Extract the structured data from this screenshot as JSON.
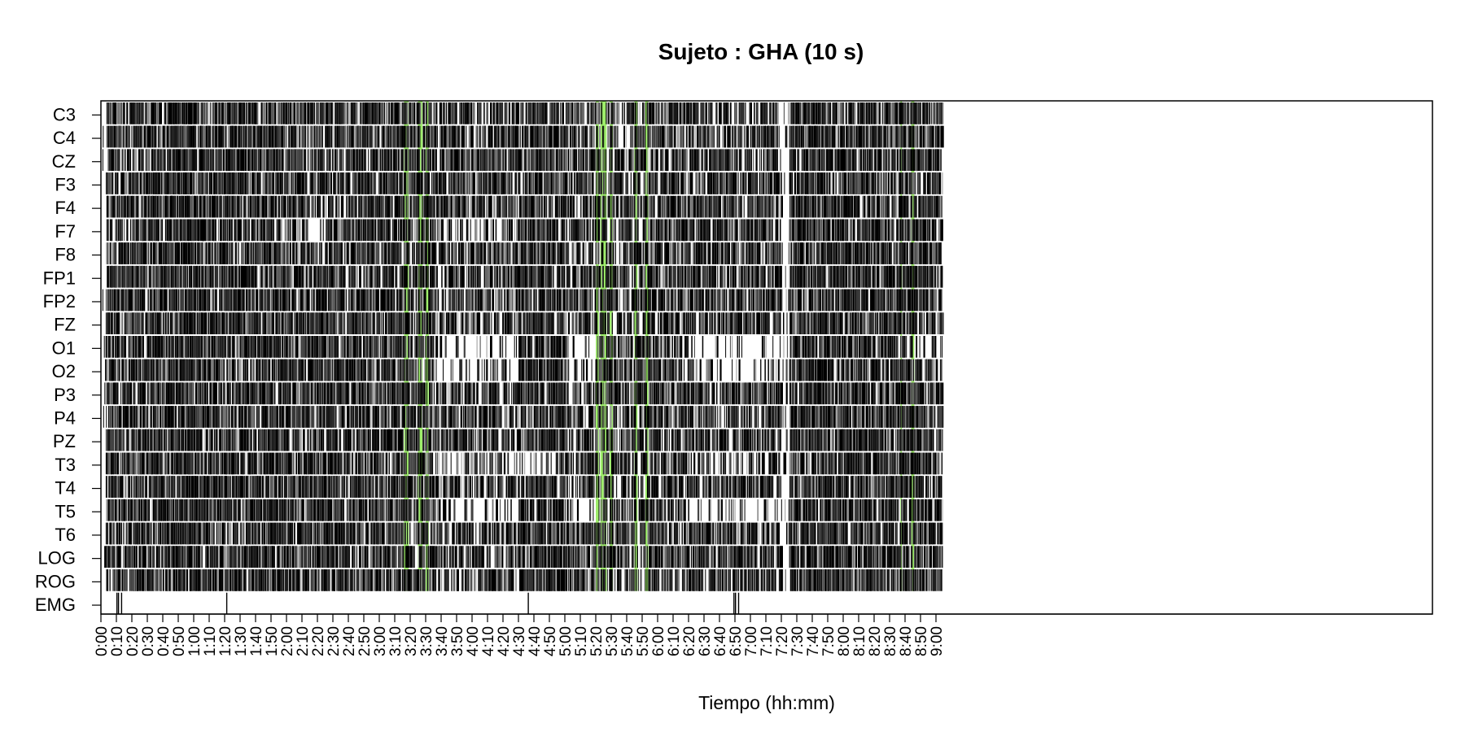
{
  "chart_data": {
    "type": "heatmap",
    "title": "Sujeto : GHA  (10 s)",
    "xlabel": "Tiempo (hh:mm)",
    "ylabel": "",
    "x_range_minutes": [
      0,
      545
    ],
    "epoch_seconds": 10,
    "channels": [
      "C3",
      "C4",
      "CZ",
      "F3",
      "F4",
      "F7",
      "F8",
      "FP1",
      "FP2",
      "FZ",
      "O1",
      "O2",
      "P3",
      "P4",
      "PZ",
      "T3",
      "T4",
      "T5",
      "T6",
      "LOG",
      "ROG",
      "EMG"
    ],
    "x_ticks": [
      "0:00",
      "0:10",
      "0:20",
      "0:30",
      "0:40",
      "0:50",
      "1:00",
      "1:10",
      "1:20",
      "1:30",
      "1:40",
      "1:50",
      "2:00",
      "2:10",
      "2:20",
      "2:30",
      "2:40",
      "2:50",
      "3:00",
      "3:10",
      "3:20",
      "3:30",
      "3:40",
      "3:50",
      "4:00",
      "4:10",
      "4:20",
      "4:30",
      "4:40",
      "4:50",
      "5:00",
      "5:10",
      "5:20",
      "5:30",
      "5:40",
      "5:50",
      "6:00",
      "6:10",
      "6:20",
      "6:30",
      "6:40",
      "6:50",
      "7:00",
      "7:10",
      "7:20",
      "7:30",
      "7:40",
      "7:50",
      "8:00",
      "8:10",
      "8:20",
      "8:30",
      "8:40",
      "8:50",
      "9:00"
    ],
    "highlight_color": "#7ee83a",
    "mark_color": "#000000",
    "highlight_intervals_minutes": [
      [
        196,
        199
      ],
      [
        205,
        208
      ],
      [
        210,
        212
      ],
      [
        320,
        322
      ],
      [
        323,
        327
      ],
      [
        329,
        331
      ],
      [
        345,
        347
      ],
      [
        352,
        354
      ],
      [
        517,
        518
      ],
      [
        524,
        526
      ]
    ],
    "channel_activity": {
      "description": "density (0-1) of marked epochs per channel across time segments [start_min, end_min, density]",
      "default_segments": [
        [
          0,
          3,
          0.05
        ],
        [
          3,
          20,
          0.45
        ],
        [
          20,
          45,
          0.55
        ],
        [
          45,
          60,
          0.7
        ],
        [
          60,
          120,
          0.55
        ],
        [
          120,
          195,
          0.5
        ],
        [
          195,
          215,
          0.45
        ],
        [
          215,
          270,
          0.4
        ],
        [
          270,
          300,
          0.55
        ],
        [
          300,
          320,
          0.4
        ],
        [
          320,
          355,
          0.35
        ],
        [
          355,
          440,
          0.45
        ],
        [
          440,
          445,
          0.1
        ],
        [
          445,
          470,
          0.6
        ],
        [
          470,
          500,
          0.55
        ],
        [
          500,
          545,
          0.5
        ]
      ],
      "quiet_segments": {
        "O1": [
          [
            215,
            270,
            0.1
          ],
          [
            300,
            320,
            0.1
          ],
          [
            380,
            440,
            0.1
          ],
          [
            520,
            545,
            0.1
          ]
        ],
        "O2": [
          [
            215,
            270,
            0.15
          ],
          [
            300,
            320,
            0.15
          ],
          [
            380,
            440,
            0.15
          ]
        ],
        "T3": [
          [
            215,
            300,
            0.2
          ],
          [
            380,
            440,
            0.2
          ]
        ],
        "T5": [
          [
            215,
            270,
            0.15
          ],
          [
            300,
            320,
            0.1
          ],
          [
            380,
            440,
            0.15
          ]
        ],
        "F7": [
          [
            110,
            145,
            0.15
          ],
          [
            215,
            260,
            0.2
          ]
        ],
        "EMG": [
          [
            0,
            545,
            0.0
          ]
        ]
      },
      "emg_marks_minutes": [
        10,
        11,
        13,
        81,
        276,
        409,
        410,
        412
      ]
    }
  }
}
